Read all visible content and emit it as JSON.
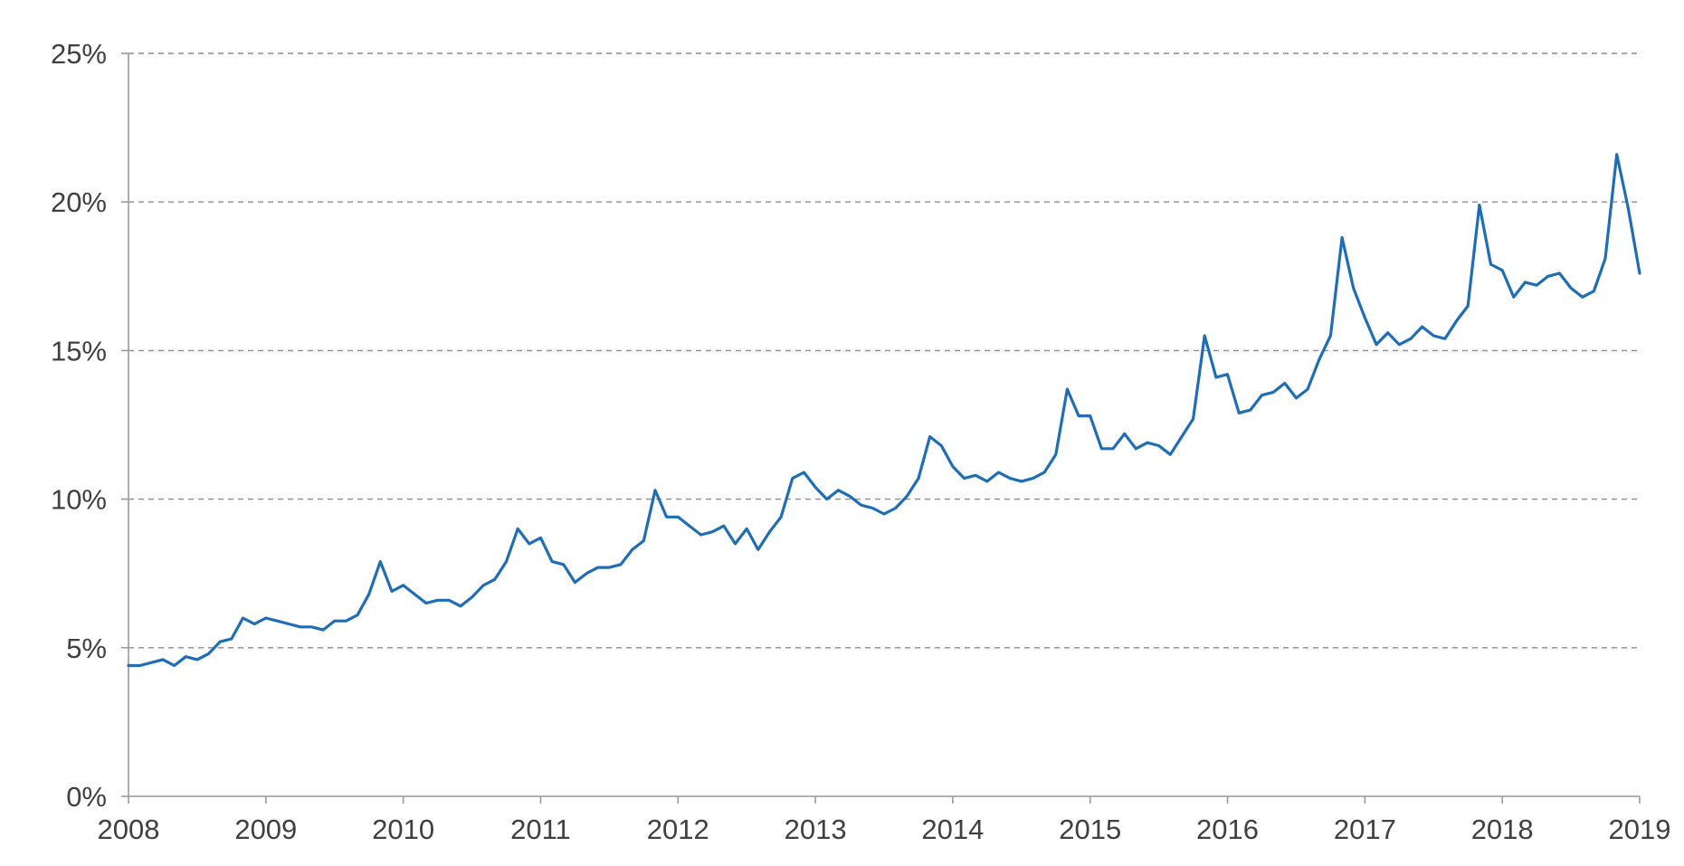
{
  "chart_data": {
    "type": "line",
    "title": "",
    "xlabel": "",
    "ylabel": "",
    "x_tick_labels": [
      "2008",
      "2009",
      "2010",
      "2011",
      "2012",
      "2013",
      "2014",
      "2015",
      "2016",
      "2017",
      "2018",
      "2019"
    ],
    "y_tick_labels": [
      "0%",
      "5%",
      "10%",
      "15%",
      "20%",
      "25%"
    ],
    "xlim": [
      "2008-01",
      "2019-01"
    ],
    "ylim": [
      0,
      25
    ],
    "y_unit": "%",
    "grid": "horizontal dashed",
    "colors": {
      "series": "#1f6db5",
      "grid": "#8c8c8c",
      "axis": "#9a9a9a",
      "text": "#404040"
    },
    "series": [
      {
        "x": [
          "2008-01",
          "2008-02",
          "2008-03",
          "2008-04",
          "2008-05",
          "2008-06",
          "2008-07",
          "2008-08",
          "2008-09",
          "2008-10",
          "2008-11",
          "2008-12",
          "2009-01",
          "2009-02",
          "2009-03",
          "2009-04",
          "2009-05",
          "2009-06",
          "2009-07",
          "2009-08",
          "2009-09",
          "2009-10",
          "2009-11",
          "2009-12",
          "2010-01",
          "2010-02",
          "2010-03",
          "2010-04",
          "2010-05",
          "2010-06",
          "2010-07",
          "2010-08",
          "2010-09",
          "2010-10",
          "2010-11",
          "2010-12",
          "2011-01",
          "2011-02",
          "2011-03",
          "2011-04",
          "2011-05",
          "2011-06",
          "2011-07",
          "2011-08",
          "2011-09",
          "2011-10",
          "2011-11",
          "2011-12",
          "2012-01",
          "2012-02",
          "2012-03",
          "2012-04",
          "2012-05",
          "2012-06",
          "2012-07",
          "2012-08",
          "2012-09",
          "2012-10",
          "2012-11",
          "2012-12",
          "2013-01",
          "2013-02",
          "2013-03",
          "2013-04",
          "2013-05",
          "2013-06",
          "2013-07",
          "2013-08",
          "2013-09",
          "2013-10",
          "2013-11",
          "2013-12",
          "2014-01",
          "2014-02",
          "2014-03",
          "2014-04",
          "2014-05",
          "2014-06",
          "2014-07",
          "2014-08",
          "2014-09",
          "2014-10",
          "2014-11",
          "2014-12",
          "2015-01",
          "2015-02",
          "2015-03",
          "2015-04",
          "2015-05",
          "2015-06",
          "2015-07",
          "2015-08",
          "2015-09",
          "2015-10",
          "2015-11",
          "2015-12",
          "2016-01",
          "2016-02",
          "2016-03",
          "2016-04",
          "2016-05",
          "2016-06",
          "2016-07",
          "2016-08",
          "2016-09",
          "2016-10",
          "2016-11",
          "2016-12",
          "2017-01",
          "2017-02",
          "2017-03",
          "2017-04",
          "2017-05",
          "2017-06",
          "2017-07",
          "2017-08",
          "2017-09",
          "2017-10",
          "2017-11",
          "2017-12",
          "2018-01",
          "2018-02",
          "2018-03",
          "2018-04",
          "2018-05",
          "2018-06",
          "2018-07",
          "2018-08",
          "2018-09",
          "2018-10",
          "2018-11",
          "2018-12",
          "2019-01"
        ],
        "values": [
          4.4,
          4.4,
          4.5,
          4.6,
          4.4,
          4.7,
          4.6,
          4.8,
          5.2,
          5.3,
          6.0,
          5.8,
          6.0,
          5.9,
          5.8,
          5.7,
          5.7,
          5.6,
          5.9,
          5.9,
          6.1,
          6.8,
          7.9,
          6.9,
          7.1,
          6.8,
          6.5,
          6.6,
          6.6,
          6.4,
          6.7,
          7.1,
          7.3,
          7.9,
          9.0,
          8.5,
          8.7,
          7.9,
          7.8,
          7.2,
          7.5,
          7.7,
          7.7,
          7.8,
          8.3,
          8.6,
          10.3,
          9.4,
          9.4,
          9.1,
          8.8,
          8.9,
          9.1,
          8.5,
          9.0,
          8.3,
          8.9,
          9.4,
          10.7,
          10.9,
          10.4,
          10.0,
          10.3,
          10.1,
          9.8,
          9.7,
          9.5,
          9.7,
          10.1,
          10.7,
          12.1,
          11.8,
          11.1,
          10.7,
          10.8,
          10.6,
          10.9,
          10.7,
          10.6,
          10.7,
          10.9,
          11.5,
          13.7,
          12.8,
          12.8,
          11.7,
          11.7,
          12.2,
          11.7,
          11.9,
          11.8,
          11.5,
          12.1,
          12.7,
          15.5,
          14.1,
          14.2,
          12.9,
          13.0,
          13.5,
          13.6,
          13.9,
          13.4,
          13.7,
          14.7,
          15.5,
          18.8,
          17.1,
          16.1,
          15.2,
          15.6,
          15.2,
          15.4,
          15.8,
          15.5,
          15.4,
          16.0,
          16.5,
          19.9,
          17.9,
          17.7,
          16.8,
          17.3,
          17.2,
          17.5,
          17.6,
          17.1,
          16.8,
          17.0,
          18.1,
          21.6,
          19.8,
          17.6
        ]
      }
    ]
  }
}
